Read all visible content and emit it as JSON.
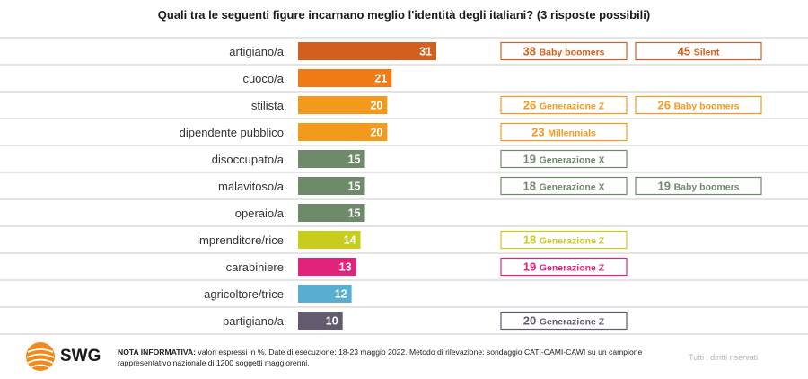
{
  "title": "Quali tra le seguenti figure incarnano meglio l'identità degli italiani? (3 risposte possibili)",
  "chart_data": {
    "type": "bar",
    "orientation": "horizontal",
    "categories": [
      "artigiano/a",
      "cuoco/a",
      "stilista",
      "dipendente pubblico",
      "disoccupato/a",
      "malavitoso/a",
      "operaio/a",
      "imprenditore/rice",
      "carabiniere",
      "agricoltore/trice",
      "partigiano/a"
    ],
    "values": [
      31,
      21,
      20,
      20,
      15,
      15,
      15,
      14,
      13,
      12,
      10
    ],
    "colors": [
      "#d35f1e",
      "#ef7a16",
      "#f39a1d",
      "#f39a1d",
      "#6f8a6a",
      "#6f8a6a",
      "#6f8a6a",
      "#c8cc1a",
      "#e2237b",
      "#58aed0",
      "#645a70"
    ],
    "xlim": [
      0,
      35
    ],
    "annotations": [
      [
        {
          "value": "38",
          "label": "Baby boomers"
        },
        {
          "value": "45",
          "label": "Silent"
        }
      ],
      [],
      [
        {
          "value": "26",
          "label": "Generazione Z"
        },
        {
          "value": "26",
          "label": "Baby boomers"
        }
      ],
      [
        {
          "value": "23",
          "label": "Millennials"
        }
      ],
      [
        {
          "value": "19",
          "label": "Generazione X"
        }
      ],
      [
        {
          "value": "18",
          "label": "Generazione X"
        },
        {
          "value": "19",
          "label": "Baby boomers"
        }
      ],
      [],
      [
        {
          "value": "18",
          "label": "Generazione Z"
        }
      ],
      [
        {
          "value": "19",
          "label": "Generazione Z"
        }
      ],
      [],
      [
        {
          "value": "20",
          "label": "Generazione Z"
        }
      ]
    ]
  },
  "footer": {
    "logo": "SWG",
    "note_label": "NOTA INFORMATIVA:",
    "note_text": " valori espressi in %. Date di esecuzione: 18-23 maggio 2022. Metodo di rilevazione: sondaggio CATI-CAMI-CAWI su un campione rappresentativo nazionale di 1200 soggetti maggiorenni.",
    "rights": "Tutti i diritti riservati"
  }
}
